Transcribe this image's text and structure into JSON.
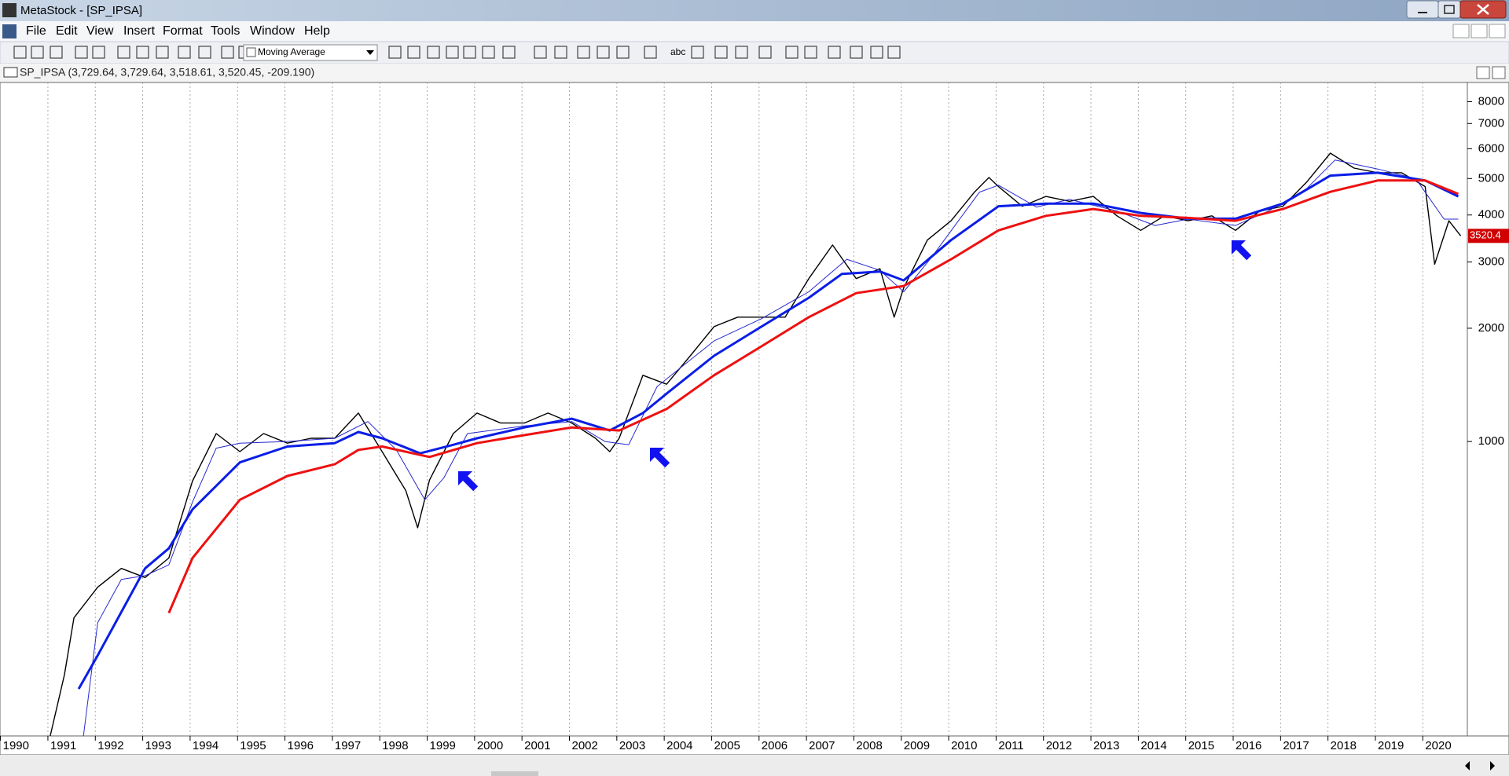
{
  "window": {
    "title": "MetaStock - [SP_IPSA]"
  },
  "menu": [
    "File",
    "Edit",
    "View",
    "Insert",
    "Format",
    "Tools",
    "Window",
    "Help"
  ],
  "toolbar": {
    "indicator": "Moving Average",
    "text_tool": "abc"
  },
  "chart_header": "SP_IPSA (3,729.64, 3,729.64, 3,518.61, 3,520.45, -209.190)",
  "last_value_label": "3520.4",
  "chart_data": {
    "type": "line",
    "yscale": "log",
    "xlim": [
      1989.94,
      2020.89
    ],
    "ylim": [
      165,
      9000
    ],
    "xticks": [
      1990,
      1991,
      1992,
      1993,
      1994,
      1995,
      1996,
      1997,
      1998,
      1999,
      2000,
      2001,
      2002,
      2003,
      2004,
      2005,
      2006,
      2007,
      2008,
      2009,
      2010,
      2011,
      2012,
      2013,
      2014,
      2015,
      2016,
      2017,
      2018,
      2019,
      2020
    ],
    "yticks": [
      1000,
      2000,
      3000,
      4000,
      5000,
      6000,
      7000,
      8000
    ],
    "grid": true,
    "series": [
      {
        "color": "#000000",
        "width": 1.4,
        "x": [
          1991.0,
          1991.3,
          1991.5,
          1992.0,
          1992.5,
          1993.0,
          1993.5,
          1994.0,
          1994.5,
          1995.0,
          1995.5,
          1996.0,
          1996.5,
          1997.0,
          1997.5,
          1998.0,
          1998.5,
          1998.75,
          1999.0,
          1999.5,
          2000.0,
          2000.5,
          2001.0,
          2001.5,
          2002.0,
          2002.5,
          2002.8,
          2003.0,
          2003.5,
          2004.0,
          2004.5,
          2005.0,
          2005.5,
          2006.0,
          2006.5,
          2007.0,
          2007.5,
          2008.0,
          2008.5,
          2008.8,
          2009.0,
          2009.5,
          2010.0,
          2010.5,
          2010.8,
          2011.0,
          2011.5,
          2012.0,
          2012.5,
          2013.0,
          2013.5,
          2014.0,
          2014.5,
          2015.0,
          2015.5,
          2016.0,
          2016.5,
          2017.0,
          2017.5,
          2018.0,
          2018.5,
          2019.0,
          2019.5,
          2020.0,
          2020.2,
          2020.5,
          2020.75
        ],
        "values": [
          165,
          240,
          340,
          410,
          460,
          435,
          490,
          785,
          1050,
          940,
          1050,
          990,
          1020,
          1020,
          1190,
          940,
          740,
          590,
          790,
          1050,
          1190,
          1120,
          1120,
          1190,
          1120,
          1020,
          940,
          1020,
          1500,
          1420,
          1690,
          2020,
          2140,
          2140,
          2140,
          2710,
          3330,
          2710,
          2880,
          2140,
          2560,
          3430,
          3860,
          4610,
          5030,
          4760,
          4220,
          4480,
          4350,
          4480,
          3980,
          3640,
          3980,
          3860,
          3980,
          3640,
          4090,
          4220,
          4890,
          5840,
          5330,
          5180,
          5180,
          4760,
          2960,
          3860,
          3520
        ]
      },
      {
        "color": "#2828d0",
        "width": 1,
        "x": [
          1991.7,
          1992.0,
          1992.5,
          1993.0,
          1993.5,
          1994.0,
          1994.5,
          1995.0,
          1996.0,
          1997.0,
          1997.7,
          1998.3,
          1998.9,
          1999.3,
          1999.8,
          2001.0,
          2002.0,
          2002.7,
          2003.2,
          2003.8,
          2005.0,
          2006.0,
          2007.0,
          2007.8,
          2008.5,
          2009.0,
          2009.6,
          2010.6,
          2011.0,
          2011.8,
          2012.5,
          2013.5,
          2014.3,
          2015.0,
          2016.0,
          2016.7,
          2017.5,
          2018.1,
          2019.0,
          2019.8,
          2020.4,
          2020.7
        ],
        "values": [
          165,
          330,
          430,
          440,
          470,
          690,
          960,
          990,
          1000,
          1020,
          1130,
          950,
          700,
          800,
          1050,
          1100,
          1130,
          1000,
          980,
          1400,
          1850,
          2120,
          2500,
          3050,
          2850,
          2500,
          3100,
          4600,
          4800,
          4200,
          4400,
          4100,
          3750,
          3900,
          3750,
          4100,
          4700,
          5600,
          5300,
          5000,
          3900,
          3900
        ]
      },
      {
        "color": "#0a1ee6",
        "width": 3,
        "x": [
          1991.6,
          1992.0,
          1993.0,
          1993.5,
          1994.0,
          1995.0,
          1996.0,
          1997.0,
          1997.5,
          1998.0,
          1998.8,
          1999.5,
          2000.0,
          2001.0,
          2002.0,
          2002.8,
          2003.5,
          2004.0,
          2005.0,
          2006.0,
          2007.0,
          2007.7,
          2008.5,
          2009.0,
          2010.0,
          2011.0,
          2012.0,
          2013.0,
          2014.0,
          2015.0,
          2016.0,
          2017.0,
          2018.0,
          2019.0,
          2020.0,
          2020.7
        ],
        "values": [
          220,
          270,
          460,
          520,
          660,
          880,
          970,
          990,
          1060,
          1020,
          930,
          980,
          1020,
          1090,
          1150,
          1070,
          1190,
          1340,
          1690,
          2020,
          2410,
          2790,
          2830,
          2680,
          3430,
          4220,
          4290,
          4290,
          4050,
          3910,
          3910,
          4290,
          5090,
          5180,
          4940,
          4480
        ]
      },
      {
        "color": "#ee1111",
        "width": 3,
        "x": [
          1993.5,
          1994.0,
          1995.0,
          1996.0,
          1997.0,
          1997.5,
          1998.0,
          1999.0,
          2000.0,
          2001.0,
          2002.0,
          2003.0,
          2004.0,
          2005.0,
          2006.0,
          2007.0,
          2008.0,
          2009.0,
          2010.0,
          2011.0,
          2012.0,
          2013.0,
          2014.0,
          2015.0,
          2016.0,
          2017.0,
          2018.0,
          2019.0,
          2020.0,
          2020.7
        ],
        "values": [
          350,
          490,
          700,
          810,
          870,
          950,
          970,
          910,
          990,
          1040,
          1090,
          1070,
          1220,
          1500,
          1790,
          2140,
          2480,
          2590,
          3050,
          3640,
          3980,
          4150,
          3980,
          3930,
          3860,
          4150,
          4610,
          4940,
          4940,
          4550
        ]
      }
    ]
  }
}
